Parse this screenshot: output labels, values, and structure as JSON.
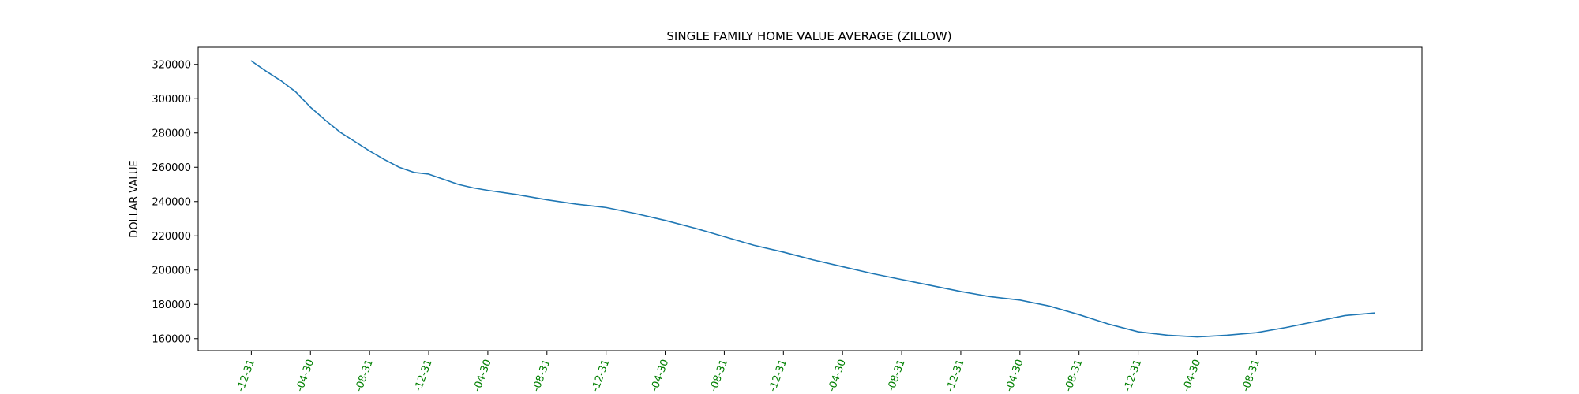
{
  "chart_data": {
    "type": "line",
    "title": "SINGLE FAMILY HOME VALUE AVERAGE (ZILLOW)",
    "xlabel": "",
    "ylabel": "DOLLAR VALUE",
    "xtick_labels": [
      "-12-31",
      "-04-30",
      "-08-31",
      "-12-31",
      "-04-30",
      "-08-31",
      "-12-31",
      "-04-30",
      "-08-31",
      "-12-31",
      "-04-30",
      "-08-31",
      "-12-31",
      "-04-30",
      "-08-31",
      "-12-31",
      "-04-30",
      "-08-31",
      ""
    ],
    "xtick_color": "#008000",
    "yticks": [
      160000,
      180000,
      200000,
      220000,
      240000,
      260000,
      280000,
      300000,
      320000
    ],
    "ylim": [
      153000,
      330000
    ],
    "x_index_range": [
      -0.9,
      19.8
    ],
    "grid": false,
    "legend": "none",
    "line_color": "#1f77b4",
    "series": [
      {
        "x": [
          0,
          0.25,
          0.5,
          0.75,
          1,
          1.25,
          1.5,
          1.75,
          2,
          2.25,
          2.5,
          2.75,
          3,
          3.25,
          3.5,
          3.75,
          4,
          4.5,
          5,
          5.5,
          6,
          6.5,
          7,
          7.5,
          8,
          8.5,
          9,
          9.5,
          10,
          10.5,
          11,
          11.5,
          12,
          12.5,
          13,
          13.5,
          14,
          14.5,
          15,
          15.5,
          16,
          16.5,
          17,
          17.5,
          18,
          18.5,
          19
        ],
        "values": [
          322000,
          316000,
          310500,
          304000,
          295000,
          287500,
          280500,
          275000,
          269500,
          264500,
          260000,
          257000,
          256000,
          253000,
          250000,
          248000,
          246500,
          244000,
          241000,
          238500,
          236500,
          233000,
          229000,
          224500,
          219500,
          214500,
          210500,
          206000,
          202000,
          198000,
          194500,
          191000,
          187500,
          184500,
          182500,
          179000,
          174000,
          168500,
          164000,
          162000,
          161000,
          162000,
          163500,
          166500,
          170000,
          173500,
          175000
        ]
      }
    ]
  }
}
